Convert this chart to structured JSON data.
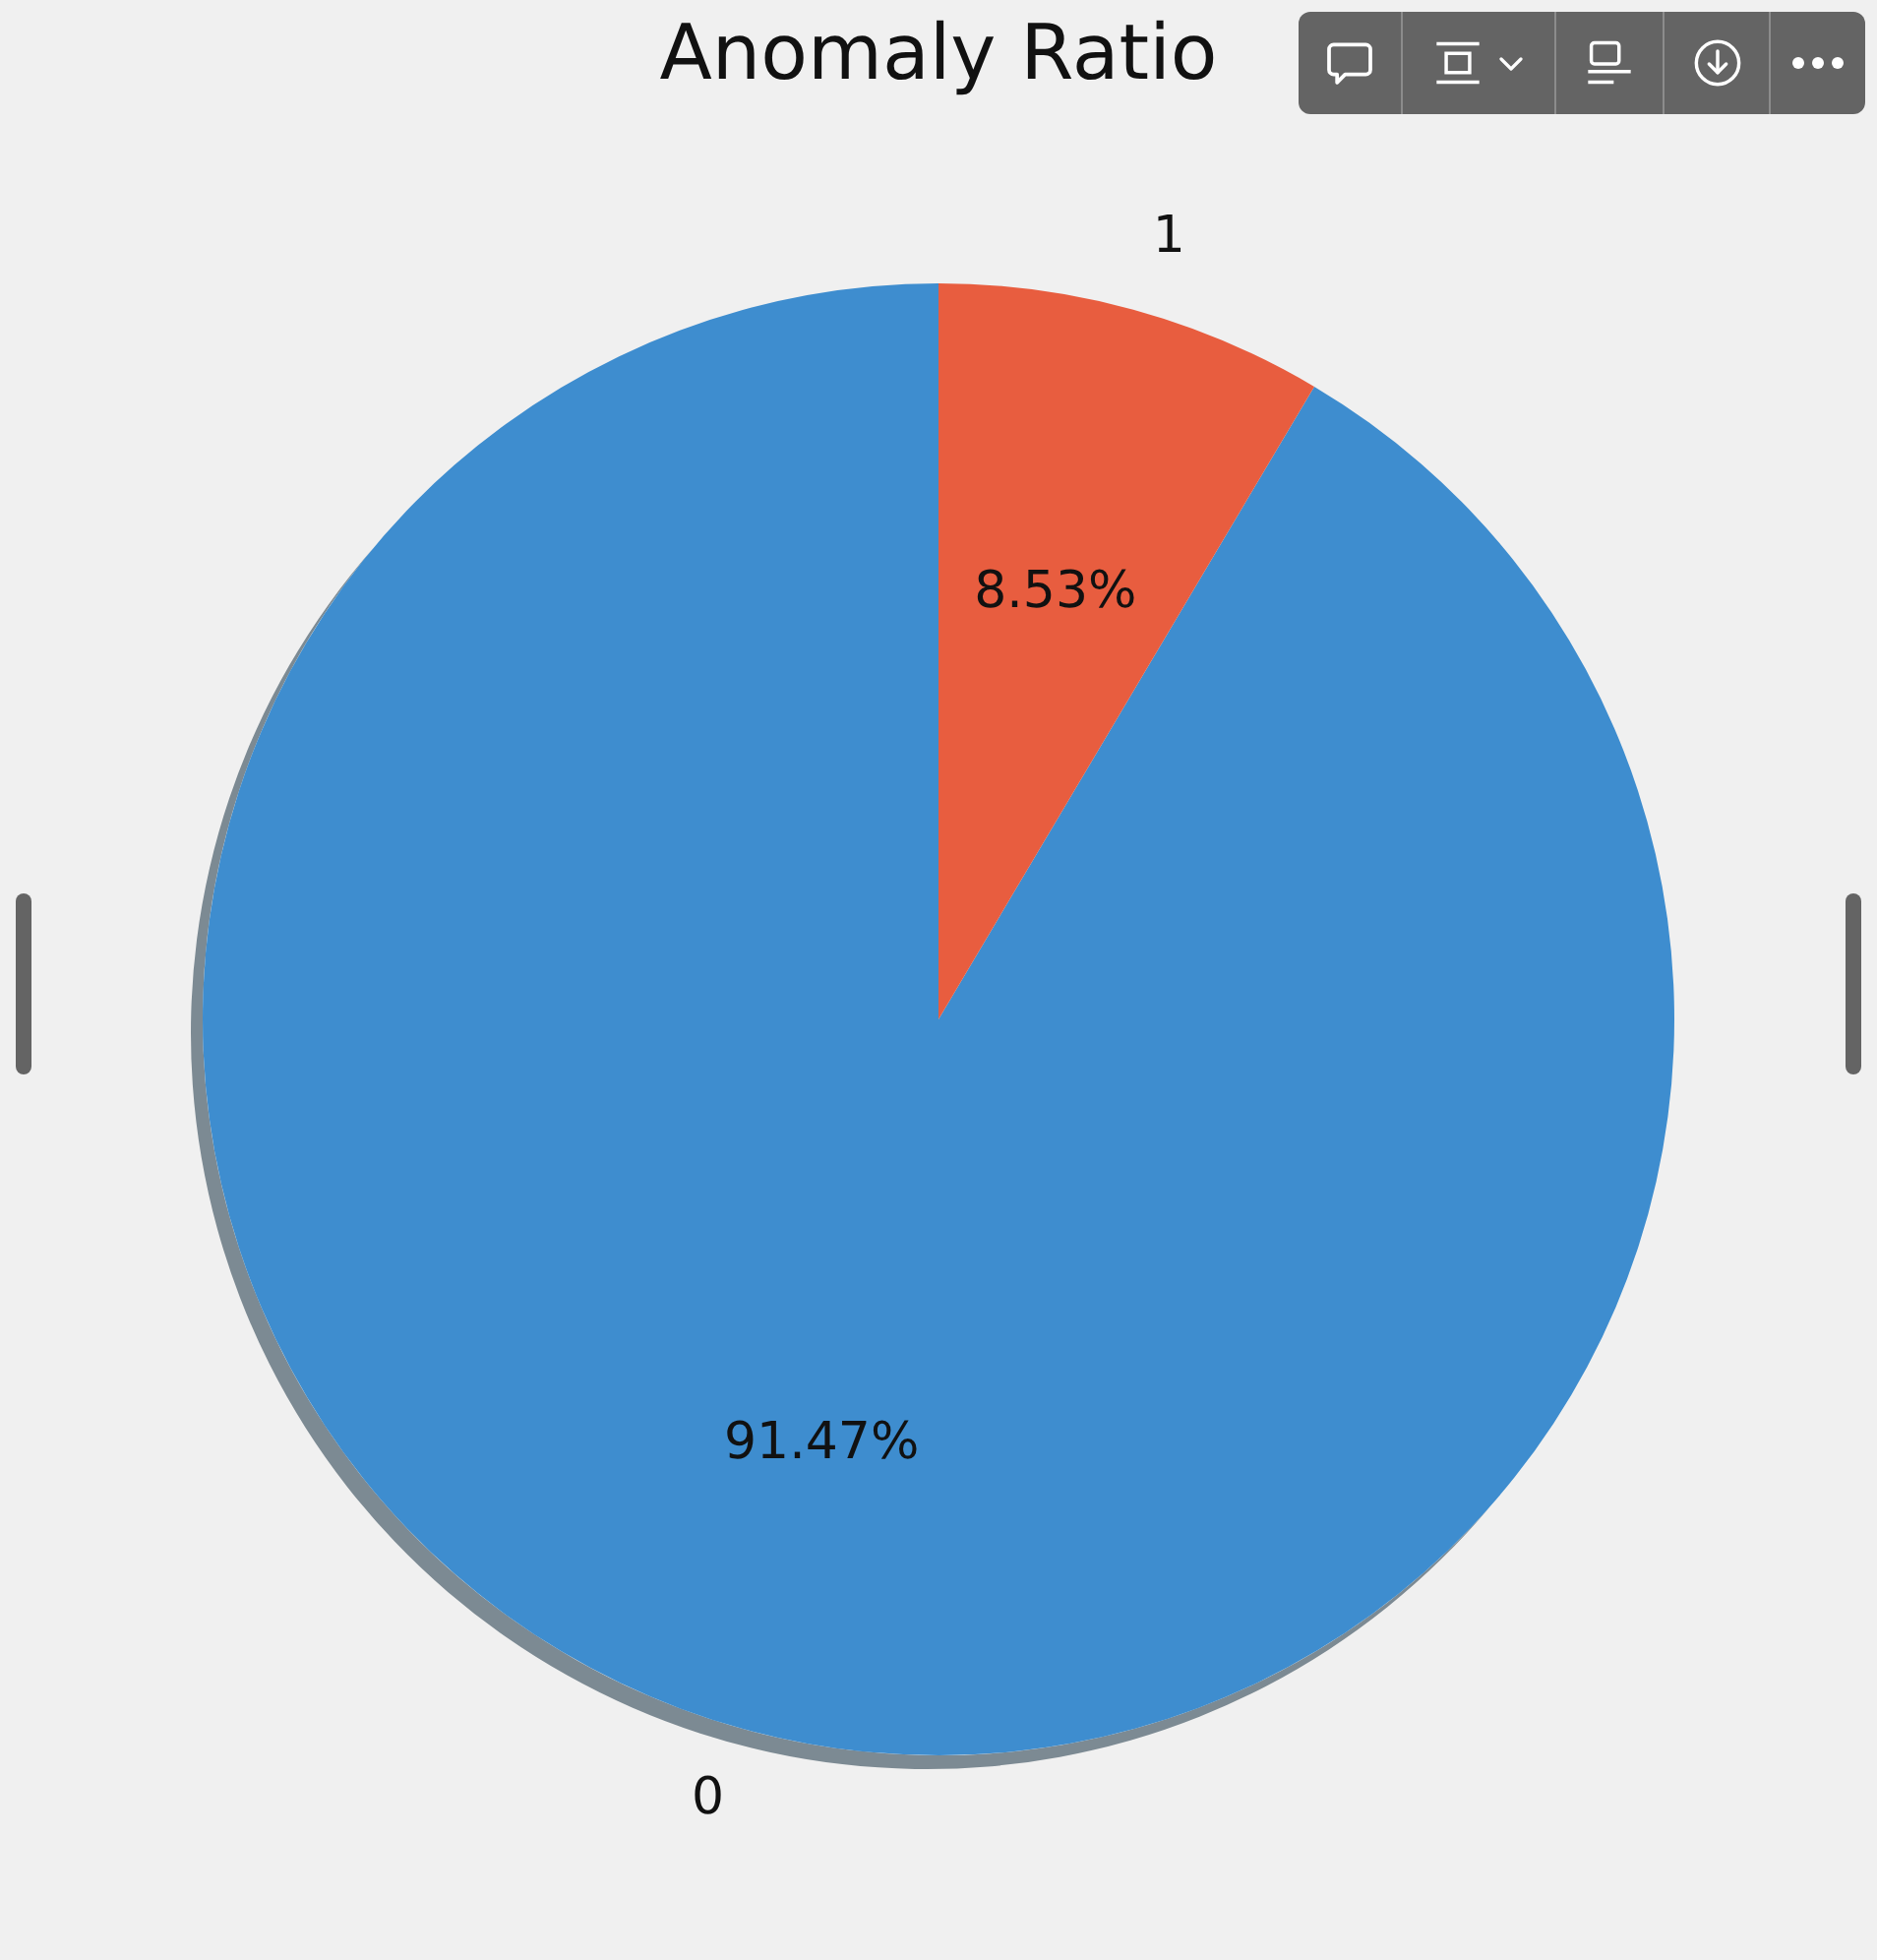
{
  "chart_data": {
    "type": "pie",
    "title": "Anomaly Ratio",
    "categories": [
      "0",
      "1"
    ],
    "values": [
      91.47,
      8.53
    ],
    "colors": [
      "#3e8dcf",
      "#e85d3f"
    ],
    "value_labels": [
      "91.47%",
      "8.53%"
    ]
  }
}
